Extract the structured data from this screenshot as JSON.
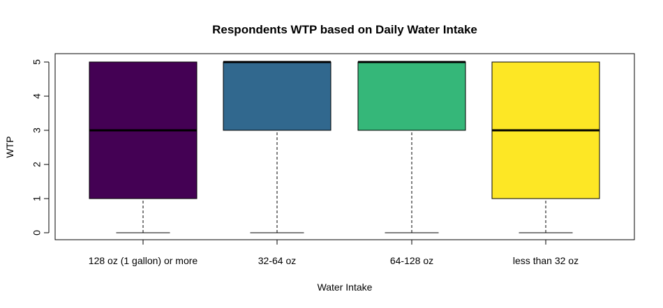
{
  "chart_data": {
    "type": "box",
    "title": "Respondents WTP based on Daily Water Intake",
    "xlabel": "Water Intake",
    "ylabel": "WTP",
    "ylim": [
      0,
      5
    ],
    "y_ticks": [
      "0",
      "1",
      "2",
      "3",
      "4",
      "5"
    ],
    "categories": [
      "128 oz (1 gallon) or more",
      "32-64 oz",
      "64-128 oz",
      "less than 32 oz"
    ],
    "boxes": [
      {
        "category": "128 oz (1 gallon) or more",
        "min": 0,
        "q1": 1,
        "median": 3,
        "q3": 5,
        "max": 5,
        "color": "#440154"
      },
      {
        "category": "32-64 oz",
        "min": 0,
        "q1": 3,
        "median": 5,
        "q3": 5,
        "max": 5,
        "color": "#31688E"
      },
      {
        "category": "64-128 oz",
        "min": 0,
        "q1": 3,
        "median": 5,
        "q3": 5,
        "max": 5,
        "color": "#35B779"
      },
      {
        "category": "less than 32 oz",
        "min": 0,
        "q1": 1,
        "median": 3,
        "q3": 5,
        "max": 5,
        "color": "#FDE725"
      }
    ],
    "grid": false,
    "legend": "none"
  }
}
